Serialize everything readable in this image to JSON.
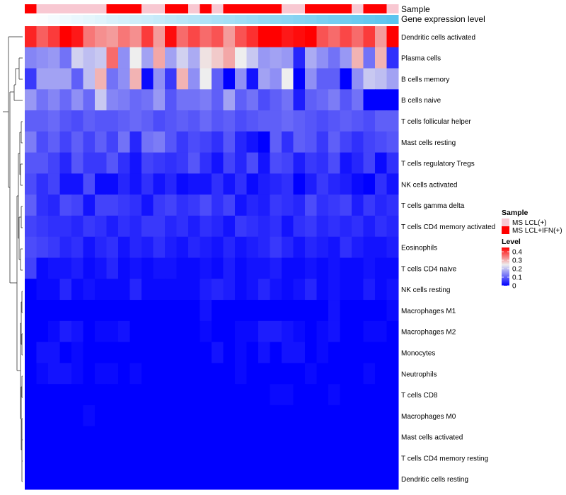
{
  "chart_data": {
    "type": "heatmap",
    "annotation_labels": [
      "Sample",
      "Gene expression level"
    ],
    "rows": [
      "Dendritic cells activated",
      "Plasma cells",
      "B cells memory",
      "B cells naive",
      "T cells follicular helper",
      "Mast cells resting",
      "T cells regulatory  Tregs",
      "NK cells activated",
      "T cells gamma delta",
      "T cells CD4 memory activated",
      "Eosinophils",
      "T cells CD4 naive",
      "NK cells resting",
      "Macrophages M1",
      "Macrophages M2",
      "Monocytes",
      "Neutrophils",
      "T cells CD8",
      "Macrophages M0",
      "Mast cells activated",
      "T cells CD4 memory resting",
      "Dendritic cells resting"
    ],
    "sample_groups": [
      1,
      0,
      0,
      0,
      0,
      0,
      0,
      1,
      1,
      1,
      0,
      0,
      1,
      1,
      0,
      1,
      0,
      1,
      1,
      1,
      1,
      1,
      0,
      0,
      1,
      1,
      1,
      1,
      0,
      1,
      1,
      0
    ],
    "gene_expression": [
      0.0,
      0.03,
      0.06,
      0.1,
      0.13,
      0.16,
      0.19,
      0.23,
      0.26,
      0.29,
      0.32,
      0.35,
      0.39,
      0.42,
      0.45,
      0.48,
      0.52,
      0.55,
      0.58,
      0.61,
      0.65,
      0.68,
      0.71,
      0.74,
      0.77,
      0.81,
      0.84,
      0.87,
      0.9,
      0.94,
      0.97,
      1.0
    ],
    "values": [
      [
        0.42,
        0.37,
        0.4,
        0.45,
        0.43,
        0.35,
        0.33,
        0.32,
        0.35,
        0.33,
        0.4,
        0.32,
        0.44,
        0.36,
        0.39,
        0.36,
        0.38,
        0.32,
        0.38,
        0.41,
        0.45,
        0.45,
        0.43,
        0.44,
        0.45,
        0.38,
        0.36,
        0.39,
        0.36,
        0.4,
        0.32,
        0.45
      ],
      [
        0.14,
        0.15,
        0.16,
        0.12,
        0.22,
        0.2,
        0.21,
        0.36,
        0.15,
        0.25,
        0.17,
        0.31,
        0.17,
        0.22,
        0.18,
        0.26,
        0.28,
        0.31,
        0.25,
        0.21,
        0.16,
        0.17,
        0.16,
        0.04,
        0.18,
        0.15,
        0.12,
        0.16,
        0.3,
        0.12,
        0.3,
        0.05
      ],
      [
        0.06,
        0.17,
        0.17,
        0.17,
        0.1,
        0.2,
        0.3,
        0.12,
        0.15,
        0.3,
        0.01,
        0.15,
        0.06,
        0.3,
        0.15,
        0.25,
        0.1,
        0.0,
        0.15,
        0.02,
        0.17,
        0.15,
        0.25,
        0.0,
        0.15,
        0.1,
        0.1,
        0.0,
        0.15,
        0.21,
        0.2,
        0.17
      ],
      [
        0.16,
        0.12,
        0.14,
        0.11,
        0.15,
        0.11,
        0.21,
        0.14,
        0.13,
        0.11,
        0.12,
        0.16,
        0.09,
        0.12,
        0.12,
        0.13,
        0.1,
        0.17,
        0.1,
        0.12,
        0.08,
        0.1,
        0.12,
        0.03,
        0.1,
        0.11,
        0.13,
        0.09,
        0.12,
        0.0,
        0.0,
        0.0
      ],
      [
        0.1,
        0.1,
        0.11,
        0.09,
        0.08,
        0.1,
        0.09,
        0.09,
        0.1,
        0.11,
        0.1,
        0.08,
        0.09,
        0.1,
        0.09,
        0.11,
        0.09,
        0.1,
        0.08,
        0.09,
        0.1,
        0.1,
        0.11,
        0.1,
        0.09,
        0.08,
        0.09,
        0.1,
        0.09,
        0.08,
        0.1,
        0.1
      ],
      [
        0.13,
        0.08,
        0.1,
        0.07,
        0.1,
        0.07,
        0.1,
        0.07,
        0.12,
        0.04,
        0.12,
        0.13,
        0.09,
        0.06,
        0.08,
        0.07,
        0.05,
        0.09,
        0.04,
        0.02,
        0.0,
        0.1,
        0.05,
        0.1,
        0.09,
        0.06,
        0.1,
        0.07,
        0.05,
        0.07,
        0.08,
        0.09
      ],
      [
        0.09,
        0.09,
        0.07,
        0.04,
        0.09,
        0.06,
        0.06,
        0.09,
        0.05,
        0.02,
        0.07,
        0.06,
        0.05,
        0.06,
        0.09,
        0.05,
        0.02,
        0.07,
        0.04,
        0.08,
        0.02,
        0.08,
        0.07,
        0.03,
        0.06,
        0.05,
        0.08,
        0.02,
        0.04,
        0.07,
        0.01,
        0.05
      ],
      [
        0.08,
        0.05,
        0.07,
        0.02,
        0.02,
        0.08,
        0.01,
        0.01,
        0.04,
        0.02,
        0.05,
        0.02,
        0.04,
        0.01,
        0.02,
        0.02,
        0.05,
        0.02,
        0.05,
        0.01,
        0.03,
        0.04,
        0.05,
        0.0,
        0.03,
        0.06,
        0.04,
        0.03,
        0.01,
        0.0,
        0.05,
        0.02
      ],
      [
        0.1,
        0.05,
        0.04,
        0.08,
        0.07,
        0.02,
        0.07,
        0.07,
        0.06,
        0.05,
        0.02,
        0.06,
        0.07,
        0.05,
        0.06,
        0.08,
        0.05,
        0.07,
        0.02,
        0.04,
        0.03,
        0.06,
        0.05,
        0.04,
        0.08,
        0.05,
        0.06,
        0.07,
        0.03,
        0.06,
        0.04,
        0.05
      ],
      [
        0.07,
        0.06,
        0.05,
        0.05,
        0.04,
        0.06,
        0.05,
        0.03,
        0.05,
        0.04,
        0.06,
        0.06,
        0.04,
        0.05,
        0.03,
        0.05,
        0.04,
        0.02,
        0.06,
        0.05,
        0.04,
        0.05,
        0.02,
        0.05,
        0.06,
        0.04,
        0.05,
        0.04,
        0.05,
        0.03,
        0.05,
        0.04
      ],
      [
        0.08,
        0.07,
        0.06,
        0.04,
        0.05,
        0.02,
        0.04,
        0.05,
        0.02,
        0.04,
        0.03,
        0.05,
        0.03,
        0.02,
        0.04,
        0.03,
        0.02,
        0.04,
        0.02,
        0.03,
        0.04,
        0.06,
        0.04,
        0.02,
        0.04,
        0.03,
        0.02,
        0.05,
        0.03,
        0.02,
        0.02,
        0.03
      ],
      [
        0.07,
        0.01,
        0.02,
        0.02,
        0.03,
        0.01,
        0.02,
        0.04,
        0.01,
        0.02,
        0.01,
        0.02,
        0.02,
        0.01,
        0.01,
        0.02,
        0.01,
        0.03,
        0.01,
        0.02,
        0.02,
        0.03,
        0.01,
        0.01,
        0.02,
        0.01,
        0.02,
        0.01,
        0.01,
        0.02,
        0.01,
        0.01
      ],
      [
        0.0,
        0.01,
        0.01,
        0.04,
        0.01,
        0.02,
        0.01,
        0.01,
        0.01,
        0.04,
        0.01,
        0.01,
        0.01,
        0.01,
        0.01,
        0.03,
        0.04,
        0.03,
        0.01,
        0.02,
        0.04,
        0.02,
        0.01,
        0.02,
        0.04,
        0.01,
        0.02,
        0.01,
        0.01,
        0.03,
        0.01,
        0.02
      ],
      [
        0.0,
        0.0,
        0.0,
        0.0,
        0.0,
        0.0,
        0.0,
        0.0,
        0.0,
        0.0,
        0.0,
        0.0,
        0.0,
        0.0,
        0.0,
        0.02,
        0.0,
        0.0,
        0.0,
        0.0,
        0.0,
        0.0,
        0.0,
        0.0,
        0.0,
        0.0,
        0.02,
        0.0,
        0.0,
        0.0,
        0.0,
        0.01
      ],
      [
        0.0,
        0.0,
        0.01,
        0.03,
        0.02,
        0.0,
        0.01,
        0.01,
        0.02,
        0.0,
        0.0,
        0.0,
        0.0,
        0.0,
        0.0,
        0.01,
        0.0,
        0.0,
        0.01,
        0.01,
        0.03,
        0.03,
        0.02,
        0.01,
        0.0,
        0.01,
        0.02,
        0.0,
        0.0,
        0.01,
        0.01,
        0.0
      ],
      [
        0.0,
        0.02,
        0.02,
        0.0,
        0.01,
        0.0,
        0.0,
        0.0,
        0.0,
        0.0,
        0.0,
        0.0,
        0.0,
        0.0,
        0.0,
        0.0,
        0.02,
        0.0,
        0.01,
        0.0,
        0.02,
        0.0,
        0.02,
        0.02,
        0.0,
        0.01,
        0.0,
        0.0,
        0.0,
        0.0,
        0.0,
        0.0
      ],
      [
        0.0,
        0.01,
        0.02,
        0.02,
        0.01,
        0.0,
        0.01,
        0.01,
        0.0,
        0.01,
        0.0,
        0.0,
        0.0,
        0.0,
        0.0,
        0.0,
        0.0,
        0.0,
        0.01,
        0.0,
        0.0,
        0.0,
        0.0,
        0.0,
        0.01,
        0.0,
        0.0,
        0.0,
        0.0,
        0.01,
        0.0,
        0.0
      ],
      [
        0.0,
        0.0,
        0.0,
        0.0,
        0.0,
        0.0,
        0.0,
        0.0,
        0.0,
        0.0,
        0.0,
        0.0,
        0.0,
        0.0,
        0.0,
        0.0,
        0.0,
        0.0,
        0.0,
        0.0,
        0.0,
        0.01,
        0.01,
        0.0,
        0.0,
        0.0,
        0.01,
        0.0,
        0.0,
        0.0,
        0.0,
        0.0
      ],
      [
        0.0,
        0.0,
        0.0,
        0.0,
        0.0,
        0.01,
        0.0,
        0.0,
        0.0,
        0.0,
        0.0,
        0.0,
        0.0,
        0.0,
        0.0,
        0.0,
        0.0,
        0.0,
        0.0,
        0.0,
        0.0,
        0.0,
        0.0,
        0.0,
        0.0,
        0.0,
        0.0,
        0.0,
        0.0,
        0.0,
        0.0,
        0.0
      ],
      [
        0.0,
        0.0,
        0.0,
        0.0,
        0.0,
        0.0,
        0.0,
        0.0,
        0.0,
        0.0,
        0.0,
        0.0,
        0.0,
        0.0,
        0.0,
        0.0,
        0.0,
        0.0,
        0.0,
        0.0,
        0.0,
        0.0,
        0.0,
        0.0,
        0.0,
        0.0,
        0.0,
        0.0,
        0.0,
        0.0,
        0.0,
        0.0
      ],
      [
        0.0,
        0.0,
        0.0,
        0.0,
        0.0,
        0.0,
        0.0,
        0.0,
        0.0,
        0.0,
        0.0,
        0.0,
        0.0,
        0.0,
        0.0,
        0.0,
        0.0,
        0.0,
        0.0,
        0.0,
        0.0,
        0.0,
        0.0,
        0.0,
        0.0,
        0.0,
        0.0,
        0.0,
        0.0,
        0.0,
        0.0,
        0.0
      ],
      [
        0.0,
        0.0,
        0.0,
        0.0,
        0.0,
        0.0,
        0.0,
        0.0,
        0.0,
        0.0,
        0.0,
        0.0,
        0.0,
        0.0,
        0.0,
        0.0,
        0.0,
        0.0,
        0.0,
        0.0,
        0.0,
        0.0,
        0.0,
        0.0,
        0.0,
        0.0,
        0.0,
        0.0,
        0.0,
        0.0,
        0.0,
        0.0
      ]
    ],
    "colorscale": {
      "low": "#0000FF",
      "mid": "#EEEEEE",
      "high": "#FF0000",
      "min": 0,
      "mid_value": 0.25,
      "max": 0.45
    },
    "legend": {
      "sample_title": "Sample",
      "sample_entries": [
        {
          "label": "MS LCL(+)",
          "color": "#F8C8D2"
        },
        {
          "label": "MS LCL+IFN(+)",
          "color": "#FF0000"
        }
      ],
      "level_title": "Level",
      "level_ticks": [
        {
          "label": "0.4",
          "value": 0.4
        },
        {
          "label": "0.3",
          "value": 0.3
        },
        {
          "label": "0.2",
          "value": 0.2
        },
        {
          "label": "0.1",
          "value": 0.1
        },
        {
          "label": "0",
          "value": 0.0
        }
      ]
    },
    "gene_expression_colors": {
      "low": "#FFFFFF",
      "high": "#5BC4EE"
    }
  }
}
